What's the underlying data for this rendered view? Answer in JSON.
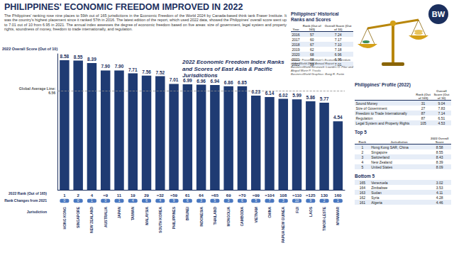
{
  "title": "PHILIPPINES' ECONOMIC FREEDOM IMPROVED IN 2022",
  "subtitle": "The Philippines' ranking rose nine places to 59th out of 165 jurisdictions in the Economic Freedom of the World 2024 by Canada-based think tank Fraser Institute. It was the country's highest placement since it ranked 57th in 2016. The latest edition of the report, which used 2022 data, showed the Philippines' overall score went up to 7.01 out of 10 from 6.95 in 2021. The annual index assesses the degree of economic freedom based on five areas: size of government, legal system and property rights, soundness of money, freedom to trade internationally, and regulation.",
  "logo": "BW",
  "chart_data": {
    "type": "bar",
    "title": "2022 Economic Freedom Index Ranks and Scores of East Asia & Pacific Jurisdictions",
    "y_label": "2022 Overall Score (Out of 10)",
    "category_label": "Jurisdiction",
    "categories": [
      "HONG KONG",
      "SINGAPORE",
      "NEW ZEALAND",
      "AUSTRALIA",
      "JAPAN",
      "TAIWAN",
      "MALAYSIA",
      "SOUTH KOREA",
      "PHILIPPINES",
      "BRUNEI",
      "INDONESIA",
      "THAILAND",
      "MONGOLIA",
      "CAMBODIA",
      "VIETNAM",
      "CHINA",
      "PAPUA NEW GUINEA",
      "FIJI",
      "LAOS",
      "TIMOR-LESTE",
      "MYANMAR"
    ],
    "values": [
      8.58,
      8.55,
      8.39,
      7.9,
      7.9,
      7.71,
      7.56,
      7.52,
      7.01,
      6.99,
      6.96,
      6.94,
      6.86,
      6.85,
      6.23,
      6.14,
      6.02,
      5.99,
      5.86,
      5.77,
      4.54
    ],
    "value_labels": [
      "8.58",
      "8.55",
      "8.39",
      "7.90",
      "7.90",
      "7.71",
      "7.56",
      "7.52",
      "7.01",
      "6.99",
      "6.96",
      "6.94",
      "6.86",
      "6.85",
      "6.23",
      "6.14",
      "6.02",
      "5.99",
      "5.86",
      "5.77",
      "4.54"
    ],
    "ranks": {
      "label": "2022 Rank (Out of 165)",
      "values": [
        "1",
        "2",
        "4",
        "=9",
        "11",
        "19",
        "29",
        "=32",
        "=59",
        "61",
        "64",
        "=65",
        "69",
        "=70",
        "=99",
        "=104",
        "108",
        "=110",
        "=125",
        "130",
        "160"
      ]
    },
    "rank_changes": {
      "label": "Rank Changes from 2021",
      "values": [
        0,
        0,
        1,
        0,
        1,
        4,
        6,
        4,
        9,
        6,
        3,
        5,
        3,
        6,
        5,
        7,
        3,
        10,
        9,
        2,
        1
      ]
    },
    "global_average": {
      "label": "Global Average Line:",
      "value": 6.56
    },
    "color": "#1f3b73",
    "ylim": [
      0,
      9
    ],
    "grid": false,
    "data_labels": true,
    "tick_labels": "x"
  },
  "historical": {
    "title": "Philippines' Historical Ranks and Scores",
    "columns": [
      "Year",
      "Rank (Out of 165)",
      "Overall Score (Out of 10)"
    ],
    "rows": [
      [
        "2016",
        "57",
        "7.24"
      ],
      [
        "2017",
        "60",
        "7.17"
      ],
      [
        "2018",
        "67",
        "7.10"
      ],
      [
        "2019",
        "62",
        "7.18"
      ],
      [
        "2020",
        "68",
        "6.96"
      ],
      [
        "2021",
        "68",
        "6.95"
      ],
      [
        "2022",
        "59",
        "7.01"
      ]
    ]
  },
  "source": [
    "Source: Fraser Institute's Economic Freedom of the World 2024 Annual Report",
    "BusinessWorld Research: Lourdes O. Pilar and Abigail Marie P. Yraola",
    "BusinessWorld Graphics: Bong R. Fortin"
  ],
  "profile": {
    "title": "Philippines' Profile (2022)",
    "columns": [
      "Rank (Out of 165)",
      "Overall Score (Out of 10)"
    ],
    "rows": [
      [
        "Sound Money",
        "31",
        "9.04"
      ],
      [
        "Size of Government",
        "27",
        "7.83"
      ],
      [
        "Freedom to Trade Internationally",
        "87",
        "7.14"
      ],
      [
        "Regulation",
        "87",
        "6.51"
      ],
      [
        "Legal System and Property Rights",
        "105",
        "4.53"
      ]
    ]
  },
  "top5": {
    "title": "Top 5",
    "columns": [
      "Rank",
      "Jurisdiction",
      "2022 Overall Score"
    ],
    "rows": [
      [
        "1",
        "Hong Kong SAR, China",
        "8.58"
      ],
      [
        "2",
        "Singapore",
        "8.55"
      ],
      [
        "3",
        "Switzerland",
        "8.43"
      ],
      [
        "4",
        "New Zealand",
        "8.39"
      ],
      [
        "5",
        "United States",
        "8.09"
      ]
    ]
  },
  "bottom5": {
    "title": "Bottom 5",
    "rows": [
      [
        "165",
        "Venezuela",
        "3.02"
      ],
      [
        "164",
        "Zimbabwe",
        "3.53"
      ],
      [
        "163",
        "Sudan",
        "4.11"
      ],
      [
        "162",
        "Syria",
        "4.28"
      ],
      [
        "161",
        "Algeria",
        "4.46"
      ]
    ]
  }
}
